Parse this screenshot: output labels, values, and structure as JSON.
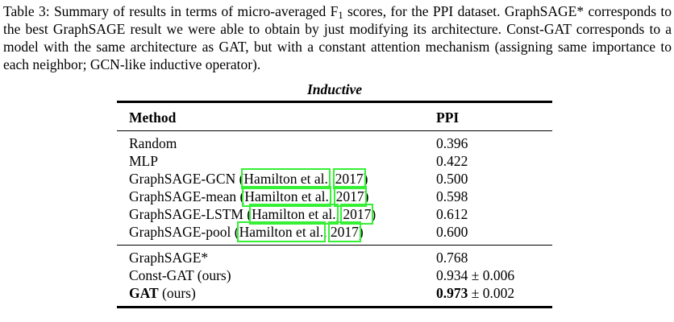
{
  "caption": {
    "part1": "Table 3: Summary of results in terms of micro-averaged F",
    "f_subscript": "1",
    "part2": " scores, for the PPI dataset. GraphSAGE* corresponds to the best GraphSAGE result we were able to obtain by just modifying its architecture. Const-GAT corresponds to a model with the same architecture as GAT, but with a constant attention mechanism (assigning same importance to each neighbor; GCN-like inductive operator)."
  },
  "table": {
    "title": "Inductive",
    "citation_box_color": "#35f035",
    "headers": {
      "method": "Method",
      "ppi": "PPI"
    },
    "rows": [
      {
        "method": "Random",
        "value": "0.396"
      },
      {
        "method": "MLP",
        "value": "0.422"
      },
      {
        "prefix": "GraphSAGE-GCN (",
        "cite": "Hamilton et al.",
        "sep": ", ",
        "year": "2017",
        "close": ")",
        "value": "0.500"
      },
      {
        "prefix": "GraphSAGE-mean (",
        "cite": "Hamilton et al.",
        "sep": ", ",
        "year": "2017",
        "close": ")",
        "value": "0.598"
      },
      {
        "prefix": "GraphSAGE-LSTM (",
        "cite": "Hamilton et al.",
        "sep": ", ",
        "year": "2017",
        "close": ")",
        "value": "0.612"
      },
      {
        "prefix": "GraphSAGE-pool (",
        "cite": "Hamilton et al.",
        "sep": ", ",
        "year": "2017",
        "close": ")",
        "value": "0.600"
      }
    ],
    "rows2": [
      {
        "method": "GraphSAGE*",
        "value": "0.768"
      },
      {
        "method": "Const-GAT (ours)",
        "value": "0.934 ± 0.006"
      },
      {
        "method_bold": "GAT",
        "method_rest": " (ours)",
        "value_bold": "0.973",
        "value_rest": " ± 0.002"
      }
    ]
  }
}
